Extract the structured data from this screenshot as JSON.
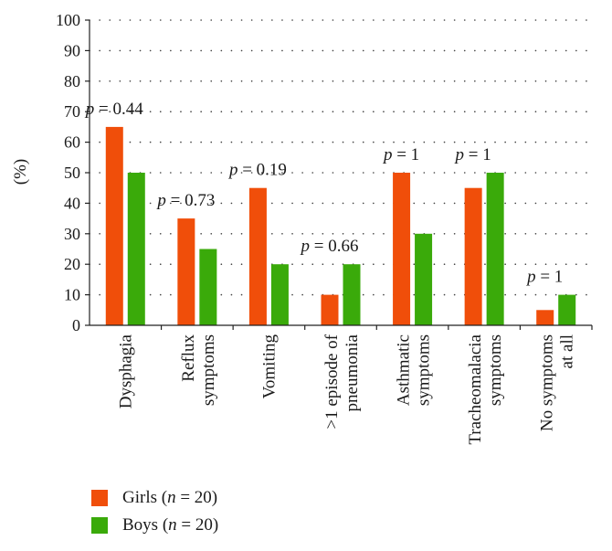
{
  "chart_data": {
    "type": "bar",
    "ylabel": "(%)",
    "ylim": [
      0,
      100
    ],
    "yticks": [
      0,
      10,
      20,
      30,
      40,
      50,
      60,
      70,
      80,
      90,
      100
    ],
    "grid": "horizontal-dotted",
    "categories": [
      [
        "Dysphagia"
      ],
      [
        "Reflux",
        "symptoms"
      ],
      [
        "Vomiting"
      ],
      [
        ">1 episode of",
        "pneumonia"
      ],
      [
        "Asthmatic",
        "symptoms"
      ],
      [
        "Tracheomalacia",
        "symptoms"
      ],
      [
        "No symptoms",
        "at all"
      ]
    ],
    "series": [
      {
        "name": "Girls (n = 20)",
        "color": "#f04e0a",
        "values": [
          65,
          35,
          45,
          10,
          50,
          45,
          5
        ]
      },
      {
        "name": "Boys (n = 20)",
        "color": "#3aaa0a",
        "values": [
          50,
          25,
          20,
          20,
          30,
          50,
          10
        ]
      }
    ],
    "annotations": [
      "p = 0.44",
      "p = 0.73",
      "p = 0.19",
      "p = 0.66",
      "p = 1",
      "p = 1",
      "p = 1"
    ],
    "legend": {
      "position": "bottom-left",
      "entries": [
        {
          "prefix": "Girls (",
          "var": "n",
          "suffix": " = 20)"
        },
        {
          "prefix": "Boys (",
          "var": "n",
          "suffix": " = 20)"
        }
      ]
    }
  }
}
